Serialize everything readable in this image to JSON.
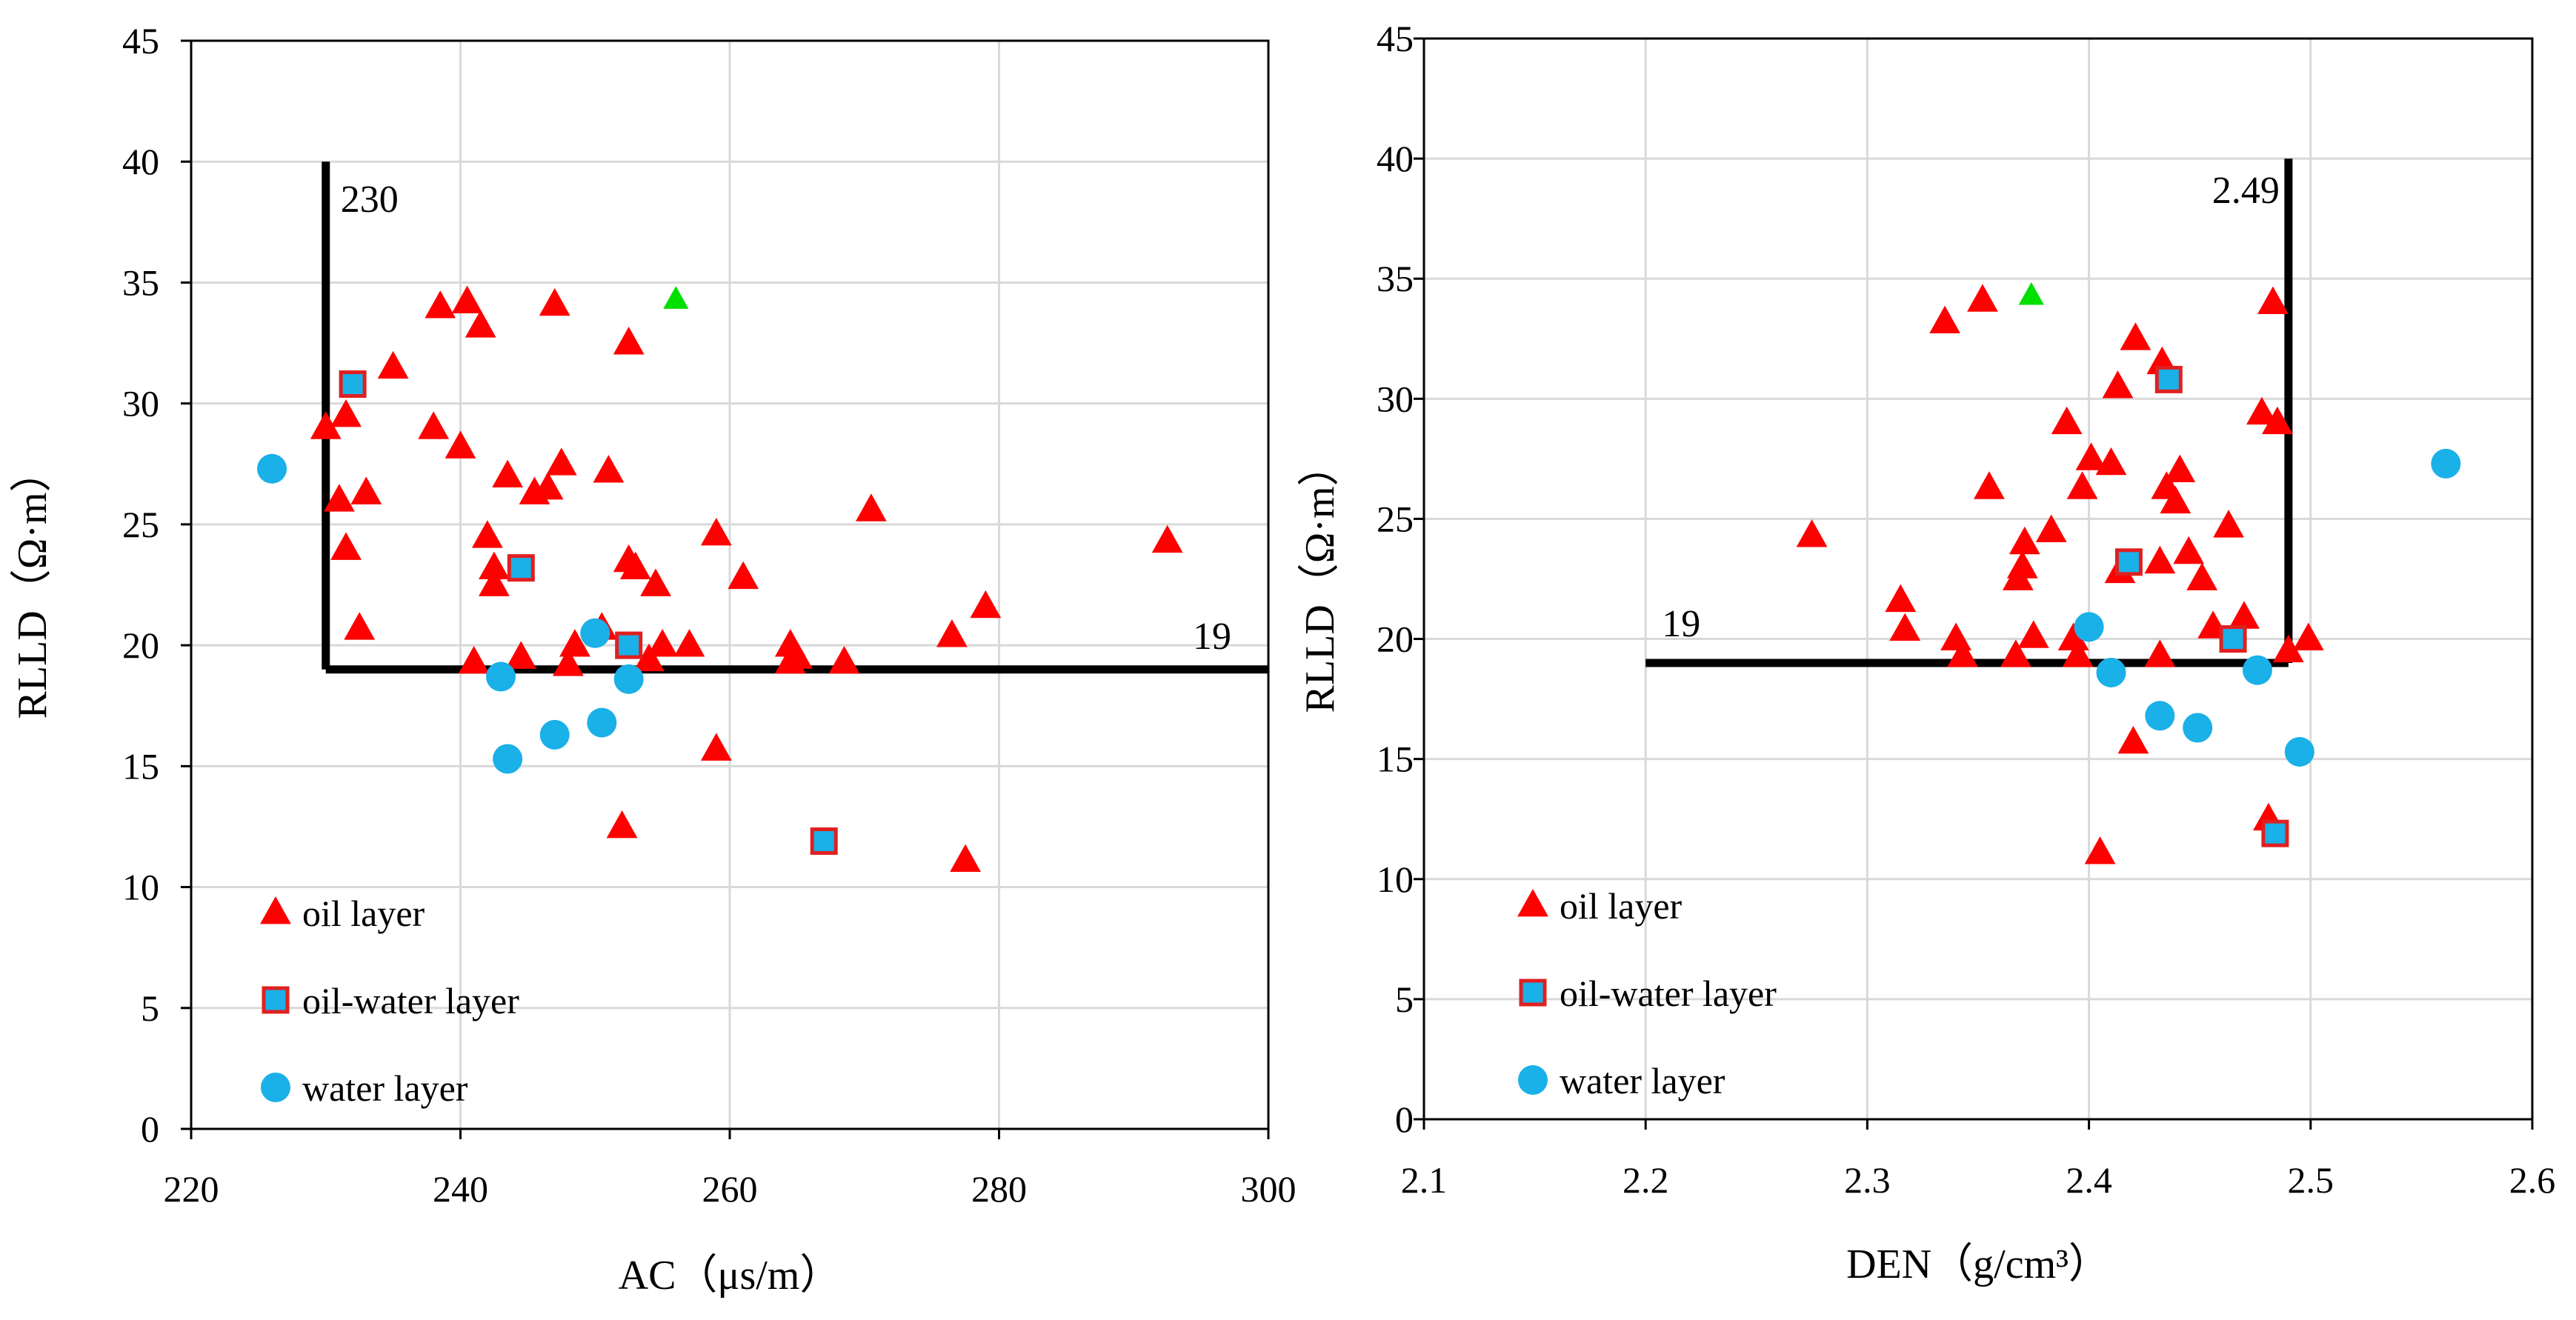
{
  "colors": {
    "oil": "#ff0000",
    "oil_water_fill": "#1ab0e8",
    "oil_water_border": "#e02020",
    "water": "#1ab0e8",
    "highlight": "#00e000",
    "grid": "#d9d9d9",
    "cutoff": "#000000"
  },
  "chart_data": [
    {
      "type": "scatter",
      "xlabel": "AC（μs/m）",
      "ylabel": "RLLD（Ω·m）",
      "xlim": [
        220,
        300
      ],
      "ylim": [
        0,
        45
      ],
      "xticks": [
        220,
        240,
        260,
        280,
        300
      ],
      "yticks": [
        0,
        5,
        10,
        15,
        20,
        25,
        30,
        35,
        40,
        45
      ],
      "grid": true,
      "legend_position": "bottom-left",
      "cutoff_lines": [
        {
          "kind": "vertical",
          "x": 230,
          "y_from": 19,
          "y_to": 40,
          "label": "230"
        },
        {
          "kind": "horizontal",
          "y": 19,
          "x_from": 230,
          "x_to": 300,
          "label": "19"
        }
      ],
      "series": [
        {
          "name": "oil layer",
          "marker": "triangle",
          "points": [
            [
              230.0,
              29.0
            ],
            [
              231.0,
              26.0
            ],
            [
              231.5,
              29.5
            ],
            [
              231.5,
              24.0
            ],
            [
              232.5,
              20.7
            ],
            [
              233.0,
              26.3
            ],
            [
              235.0,
              31.5
            ],
            [
              238.0,
              29.0
            ],
            [
              238.5,
              34.0
            ],
            [
              240.0,
              28.2
            ],
            [
              240.5,
              34.2
            ],
            [
              241.5,
              33.2
            ],
            [
              241.0,
              19.3
            ],
            [
              242.0,
              24.5
            ],
            [
              242.5,
              22.5
            ],
            [
              242.5,
              23.2
            ],
            [
              243.5,
              27.0
            ],
            [
              244.5,
              19.5
            ],
            [
              245.5,
              26.3
            ],
            [
              246.5,
              26.5
            ],
            [
              247.0,
              34.1
            ],
            [
              247.5,
              27.5
            ],
            [
              248.0,
              19.2
            ],
            [
              248.5,
              20.0
            ],
            [
              250.5,
              20.7
            ],
            [
              251.0,
              27.2
            ],
            [
              252.0,
              12.5
            ],
            [
              252.5,
              32.5
            ],
            [
              252.5,
              23.5
            ],
            [
              253.0,
              23.2
            ],
            [
              254.0,
              19.4
            ],
            [
              254.5,
              22.5
            ],
            [
              255.0,
              20.0
            ],
            [
              257.0,
              20.0
            ],
            [
              259.0,
              24.6
            ],
            [
              259.0,
              15.7
            ],
            [
              261.0,
              22.8
            ],
            [
              264.5,
              20.0
            ],
            [
              264.5,
              19.3
            ],
            [
              265.0,
              19.5
            ],
            [
              268.5,
              19.3
            ],
            [
              270.5,
              25.6
            ],
            [
              276.5,
              20.4
            ],
            [
              277.5,
              11.1
            ],
            [
              279.0,
              21.6
            ],
            [
              292.5,
              24.3
            ]
          ]
        },
        {
          "name": "oil-water layer",
          "marker": "square",
          "points": [
            [
              232.0,
              30.8
            ],
            [
              244.5,
              23.2
            ],
            [
              252.5,
              20.0
            ],
            [
              267.0,
              11.9
            ]
          ]
        },
        {
          "name": "water layer",
          "marker": "circle",
          "points": [
            [
              226.0,
              27.3
            ],
            [
              243.0,
              18.7
            ],
            [
              243.5,
              15.3
            ],
            [
              247.0,
              16.3
            ],
            [
              250.0,
              20.5
            ],
            [
              250.5,
              16.8
            ],
            [
              252.5,
              18.6
            ]
          ]
        },
        {
          "marker": "triangle-highlight",
          "points": [
            [
              256.0,
              34.3
            ]
          ]
        }
      ]
    },
    {
      "type": "scatter",
      "xlabel": "DEN（g/cm³）",
      "ylabel": "RLLD（Ω·m）",
      "xlim": [
        2.1,
        2.6
      ],
      "ylim": [
        0,
        45
      ],
      "xticks": [
        "2.1",
        "2.2",
        "2.3",
        "2.4",
        "2.5",
        "2.6"
      ],
      "yticks": [
        0,
        5,
        10,
        15,
        20,
        25,
        30,
        35,
        40,
        45
      ],
      "grid": true,
      "legend_position": "bottom-left",
      "cutoff_lines": [
        {
          "kind": "vertical",
          "x": 2.49,
          "y_from": 19,
          "y_to": 40,
          "label": "2.49"
        },
        {
          "kind": "horizontal",
          "y": 19,
          "x_from": 2.2,
          "x_to": 2.49,
          "label": "19"
        }
      ],
      "series": [
        {
          "name": "oil layer",
          "marker": "triangle",
          "points": [
            [
              2.275,
              24.3
            ],
            [
              2.315,
              21.6
            ],
            [
              2.317,
              20.4
            ],
            [
              2.335,
              33.2
            ],
            [
              2.34,
              20.0
            ],
            [
              2.343,
              19.3
            ],
            [
              2.352,
              34.1
            ],
            [
              2.355,
              26.3
            ],
            [
              2.367,
              19.3
            ],
            [
              2.368,
              22.5
            ],
            [
              2.37,
              23.0
            ],
            [
              2.371,
              24.0
            ],
            [
              2.375,
              20.1
            ],
            [
              2.383,
              24.5
            ],
            [
              2.39,
              29.0
            ],
            [
              2.393,
              20.0
            ],
            [
              2.395,
              19.3
            ],
            [
              2.397,
              26.3
            ],
            [
              2.401,
              27.5
            ],
            [
              2.405,
              11.1
            ],
            [
              2.41,
              27.3
            ],
            [
              2.413,
              30.5
            ],
            [
              2.414,
              22.8
            ],
            [
              2.42,
              15.7
            ],
            [
              2.421,
              32.5
            ],
            [
              2.432,
              23.2
            ],
            [
              2.432,
              19.3
            ],
            [
              2.433,
              31.5
            ],
            [
              2.435,
              26.3
            ],
            [
              2.439,
              25.7
            ],
            [
              2.441,
              27.0
            ],
            [
              2.445,
              23.6
            ],
            [
              2.451,
              22.5
            ],
            [
              2.456,
              20.5
            ],
            [
              2.463,
              24.7
            ],
            [
              2.47,
              20.9
            ],
            [
              2.478,
              29.4
            ],
            [
              2.481,
              12.5
            ],
            [
              2.483,
              34.0
            ],
            [
              2.485,
              29.0
            ],
            [
              2.49,
              19.5
            ],
            [
              2.499,
              20.0
            ]
          ]
        },
        {
          "name": "oil-water layer",
          "marker": "square",
          "points": [
            [
              2.418,
              23.2
            ],
            [
              2.436,
              30.8
            ],
            [
              2.465,
              20.0
            ],
            [
              2.484,
              11.9
            ]
          ]
        },
        {
          "name": "water layer",
          "marker": "circle",
          "points": [
            [
              2.4,
              20.5
            ],
            [
              2.41,
              18.6
            ],
            [
              2.432,
              16.8
            ],
            [
              2.449,
              16.3
            ],
            [
              2.476,
              18.7
            ],
            [
              2.495,
              15.3
            ],
            [
              2.561,
              27.3
            ]
          ]
        },
        {
          "marker": "triangle-highlight",
          "points": [
            [
              2.374,
              34.3
            ]
          ]
        }
      ]
    }
  ]
}
